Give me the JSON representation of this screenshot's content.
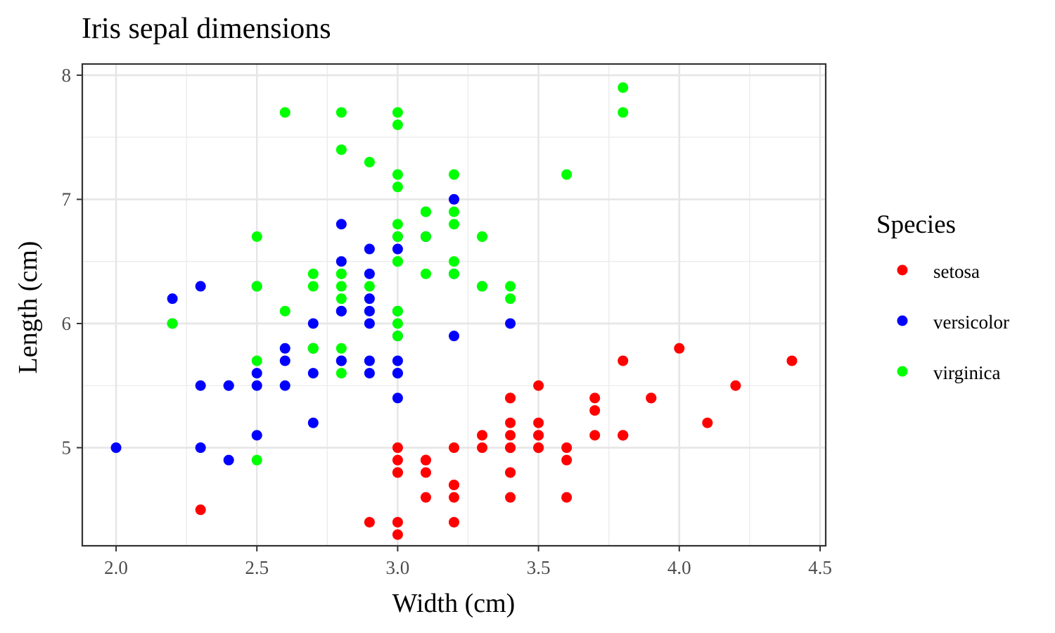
{
  "chart_data": {
    "type": "scatter",
    "title": "Iris sepal dimensions",
    "xlabel": "Width (cm)",
    "ylabel": "Length (cm)",
    "xlim": [
      1.88,
      4.52
    ],
    "ylim": [
      4.21,
      8.09
    ],
    "x_ticks": [
      2.0,
      2.5,
      3.0,
      3.5,
      4.0,
      4.5
    ],
    "x_tick_labels": [
      "2.0",
      "2.5",
      "3.0",
      "3.5",
      "4.0",
      "4.5"
    ],
    "y_ticks": [
      5,
      6,
      7,
      8
    ],
    "y_tick_labels": [
      "5",
      "6",
      "7",
      "8"
    ],
    "grid": true,
    "legend": {
      "title": "Species",
      "placement": "right"
    },
    "series": [
      {
        "name": "setosa",
        "color": "#ff0000",
        "points": [
          [
            3.5,
            5.1
          ],
          [
            3.0,
            4.9
          ],
          [
            3.2,
            4.7
          ],
          [
            3.1,
            4.6
          ],
          [
            3.6,
            5.0
          ],
          [
            3.9,
            5.4
          ],
          [
            3.4,
            4.6
          ],
          [
            3.4,
            5.0
          ],
          [
            2.9,
            4.4
          ],
          [
            3.1,
            4.9
          ],
          [
            3.7,
            5.4
          ],
          [
            3.4,
            4.8
          ],
          [
            3.0,
            4.8
          ],
          [
            3.0,
            4.3
          ],
          [
            4.0,
            5.8
          ],
          [
            4.4,
            5.7
          ],
          [
            3.9,
            5.4
          ],
          [
            3.5,
            5.1
          ],
          [
            3.8,
            5.7
          ],
          [
            3.8,
            5.1
          ],
          [
            3.4,
            5.4
          ],
          [
            3.7,
            5.1
          ],
          [
            3.6,
            4.6
          ],
          [
            3.3,
            5.1
          ],
          [
            3.4,
            4.8
          ],
          [
            3.0,
            5.0
          ],
          [
            3.4,
            5.0
          ],
          [
            3.5,
            5.2
          ],
          [
            3.4,
            5.2
          ],
          [
            3.2,
            4.7
          ],
          [
            3.1,
            4.8
          ],
          [
            3.4,
            5.4
          ],
          [
            4.1,
            5.2
          ],
          [
            4.2,
            5.5
          ],
          [
            3.1,
            4.9
          ],
          [
            3.2,
            5.0
          ],
          [
            3.5,
            5.5
          ],
          [
            3.6,
            4.9
          ],
          [
            3.0,
            4.4
          ],
          [
            3.4,
            5.1
          ],
          [
            3.5,
            5.0
          ],
          [
            2.3,
            4.5
          ],
          [
            3.2,
            4.4
          ],
          [
            3.5,
            5.0
          ],
          [
            3.8,
            5.1
          ],
          [
            3.0,
            4.8
          ],
          [
            3.8,
            5.1
          ],
          [
            3.2,
            4.6
          ],
          [
            3.7,
            5.3
          ],
          [
            3.3,
            5.0
          ]
        ]
      },
      {
        "name": "versicolor",
        "color": "#0000ff",
        "points": [
          [
            3.2,
            7.0
          ],
          [
            3.2,
            6.4
          ],
          [
            3.1,
            6.9
          ],
          [
            2.3,
            5.5
          ],
          [
            2.8,
            6.5
          ],
          [
            2.8,
            5.7
          ],
          [
            3.3,
            6.3
          ],
          [
            2.4,
            4.9
          ],
          [
            2.9,
            6.6
          ],
          [
            2.7,
            5.2
          ],
          [
            2.0,
            5.0
          ],
          [
            3.0,
            5.9
          ],
          [
            2.2,
            6.0
          ],
          [
            2.9,
            6.1
          ],
          [
            2.9,
            5.6
          ],
          [
            3.1,
            6.7
          ],
          [
            3.0,
            5.6
          ],
          [
            2.7,
            5.8
          ],
          [
            2.2,
            6.2
          ],
          [
            2.5,
            5.6
          ],
          [
            3.2,
            5.9
          ],
          [
            2.8,
            6.1
          ],
          [
            2.5,
            6.3
          ],
          [
            2.8,
            6.1
          ],
          [
            2.9,
            6.4
          ],
          [
            3.0,
            6.6
          ],
          [
            2.8,
            6.8
          ],
          [
            3.0,
            6.7
          ],
          [
            2.9,
            6.0
          ],
          [
            2.6,
            5.7
          ],
          [
            2.4,
            5.5
          ],
          [
            2.4,
            5.5
          ],
          [
            2.7,
            5.8
          ],
          [
            2.7,
            6.0
          ],
          [
            3.0,
            5.4
          ],
          [
            3.4,
            6.0
          ],
          [
            3.1,
            6.7
          ],
          [
            2.3,
            6.3
          ],
          [
            3.0,
            5.6
          ],
          [
            2.5,
            5.5
          ],
          [
            2.6,
            5.5
          ],
          [
            3.0,
            6.1
          ],
          [
            2.6,
            5.8
          ],
          [
            2.3,
            5.0
          ],
          [
            2.7,
            5.6
          ],
          [
            3.0,
            5.7
          ],
          [
            2.9,
            5.7
          ],
          [
            2.9,
            6.2
          ],
          [
            2.5,
            5.1
          ],
          [
            2.8,
            5.7
          ]
        ]
      },
      {
        "name": "virginica",
        "color": "#00ff00",
        "points": [
          [
            3.3,
            6.3
          ],
          [
            2.7,
            5.8
          ],
          [
            3.0,
            7.1
          ],
          [
            2.9,
            6.3
          ],
          [
            3.0,
            6.5
          ],
          [
            3.0,
            7.6
          ],
          [
            2.5,
            4.9
          ],
          [
            2.9,
            7.3
          ],
          [
            2.5,
            6.7
          ],
          [
            3.6,
            7.2
          ],
          [
            3.2,
            6.5
          ],
          [
            2.7,
            6.4
          ],
          [
            3.0,
            6.8
          ],
          [
            2.5,
            5.7
          ],
          [
            2.8,
            5.8
          ],
          [
            3.2,
            6.4
          ],
          [
            3.0,
            6.5
          ],
          [
            3.8,
            7.7
          ],
          [
            2.6,
            7.7
          ],
          [
            2.2,
            6.0
          ],
          [
            3.2,
            6.9
          ],
          [
            2.8,
            5.6
          ],
          [
            2.8,
            7.7
          ],
          [
            2.7,
            6.3
          ],
          [
            3.3,
            6.7
          ],
          [
            3.2,
            7.2
          ],
          [
            2.8,
            6.2
          ],
          [
            3.0,
            6.1
          ],
          [
            2.8,
            6.4
          ],
          [
            3.0,
            7.2
          ],
          [
            2.8,
            7.4
          ],
          [
            3.8,
            7.9
          ],
          [
            2.8,
            6.4
          ],
          [
            2.8,
            6.3
          ],
          [
            2.6,
            6.1
          ],
          [
            3.0,
            7.7
          ],
          [
            3.4,
            6.3
          ],
          [
            3.1,
            6.4
          ],
          [
            3.0,
            6.0
          ],
          [
            3.1,
            6.9
          ],
          [
            3.1,
            6.7
          ],
          [
            3.1,
            6.9
          ],
          [
            2.7,
            5.8
          ],
          [
            3.2,
            6.8
          ],
          [
            3.3,
            6.7
          ],
          [
            3.0,
            6.7
          ],
          [
            2.5,
            6.3
          ],
          [
            3.0,
            6.5
          ],
          [
            3.4,
            6.2
          ],
          [
            3.0,
            5.9
          ]
        ]
      }
    ]
  }
}
